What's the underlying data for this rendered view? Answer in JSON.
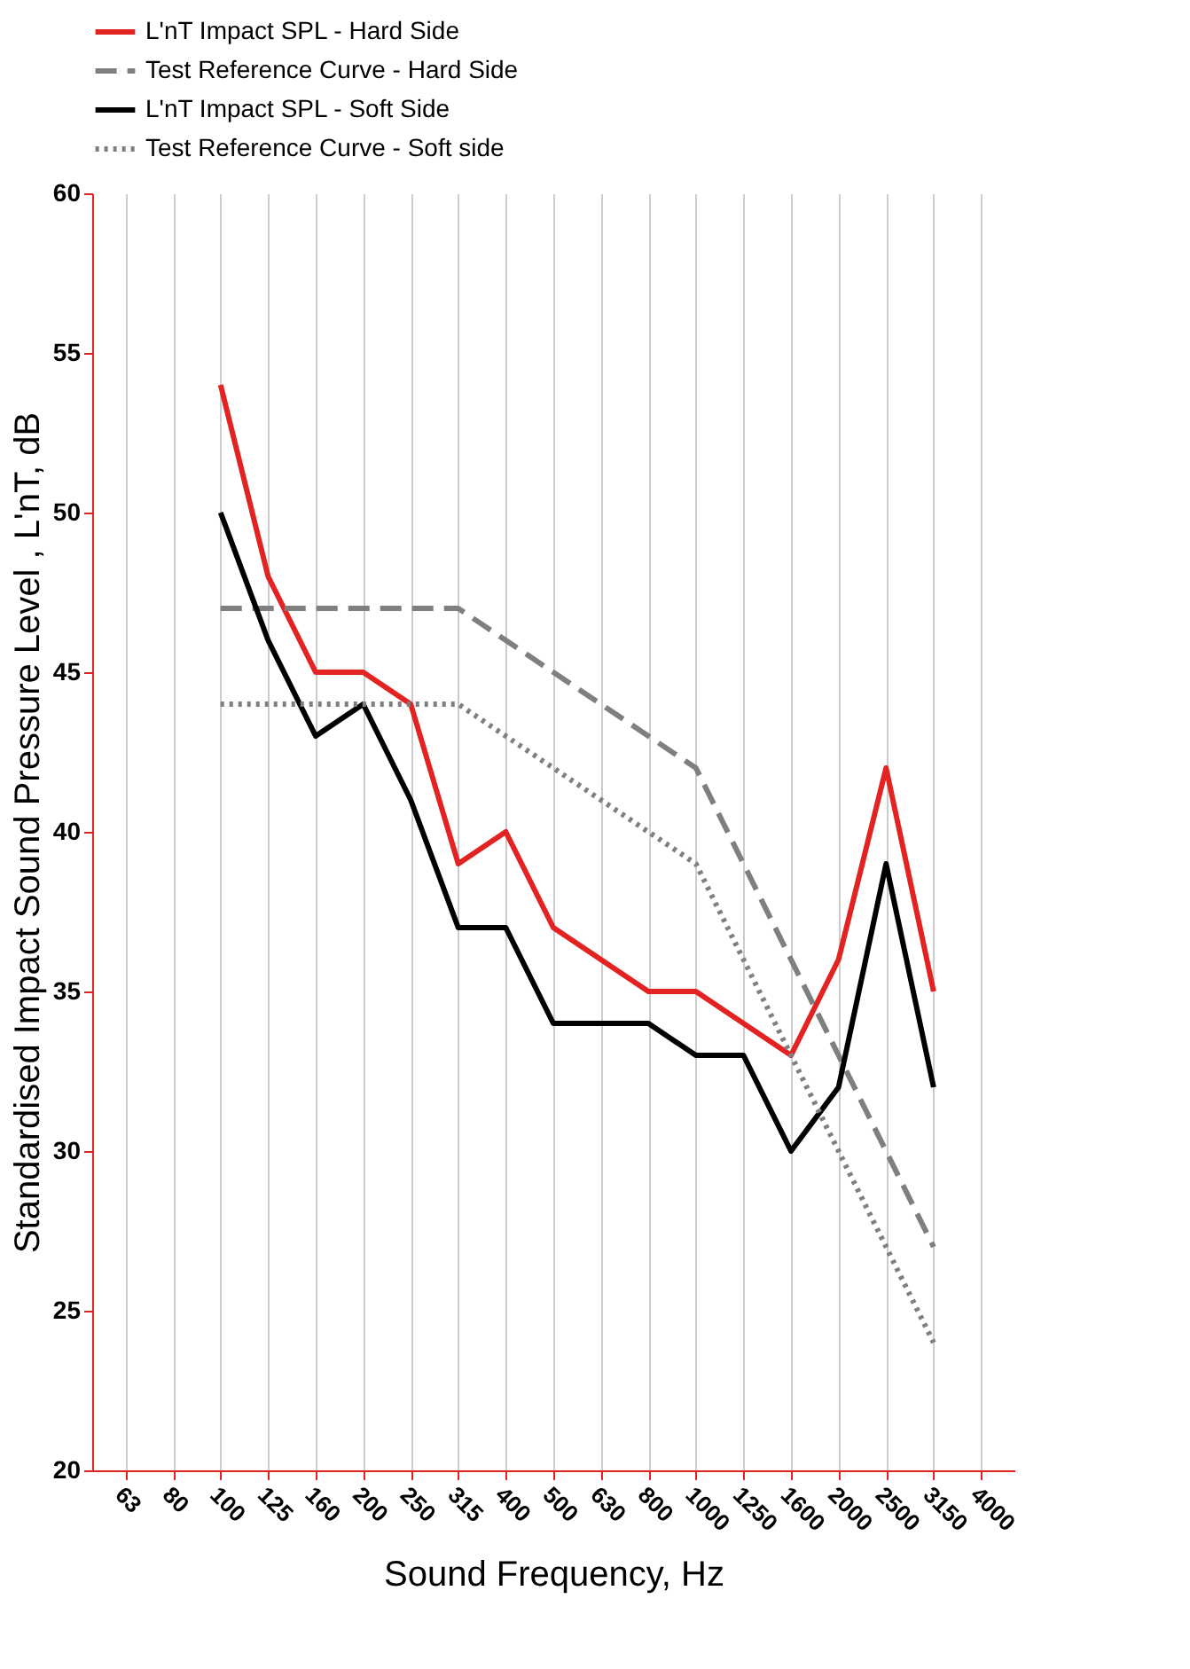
{
  "chart_data": {
    "type": "line",
    "xlabel": "Sound Frequency, Hz",
    "ylabel": "Standardised Impact Sound Pressure Level , L'nT,  dB",
    "categories": [
      "63",
      "80",
      "100",
      "125",
      "160",
      "200",
      "250",
      "315",
      "400",
      "500",
      "630",
      "800",
      "1000",
      "1250",
      "1600",
      "2000",
      "2500",
      "3150",
      "4000"
    ],
    "series": [
      {
        "name": "L'nT Impact SPL - Hard Side",
        "color": "#e32322",
        "line_style": "solid",
        "values": [
          null,
          null,
          54,
          48,
          45,
          45,
          44,
          39,
          40,
          37,
          36,
          35,
          35,
          34,
          33,
          36,
          42,
          35,
          null
        ]
      },
      {
        "name": "Test Reference Curve - Hard Side",
        "color": "#7f7f7f",
        "line_style": "dashed",
        "values": [
          null,
          null,
          47,
          47,
          47,
          47,
          47,
          47,
          46,
          45,
          44,
          43,
          42,
          39,
          36,
          33,
          30,
          27,
          null
        ]
      },
      {
        "name": "L'nT Impact SPL - Soft Side",
        "color": "#000000",
        "line_style": "solid",
        "values": [
          null,
          null,
          50,
          46,
          43,
          44,
          41,
          37,
          37,
          34,
          34,
          34,
          33,
          33,
          30,
          32,
          39,
          32,
          null
        ]
      },
      {
        "name": "Test Reference Curve - Soft side",
        "color": "#7f7f7f",
        "line_style": "dotted",
        "values": [
          null,
          null,
          44,
          44,
          44,
          44,
          44,
          44,
          43,
          42,
          41,
          40,
          39,
          36,
          33,
          30,
          27,
          24,
          null
        ]
      }
    ],
    "ylim": [
      20,
      60
    ],
    "yticks": [
      20,
      25,
      30,
      35,
      40,
      45,
      50,
      55,
      60
    ],
    "grid": "x",
    "legend": "top"
  }
}
